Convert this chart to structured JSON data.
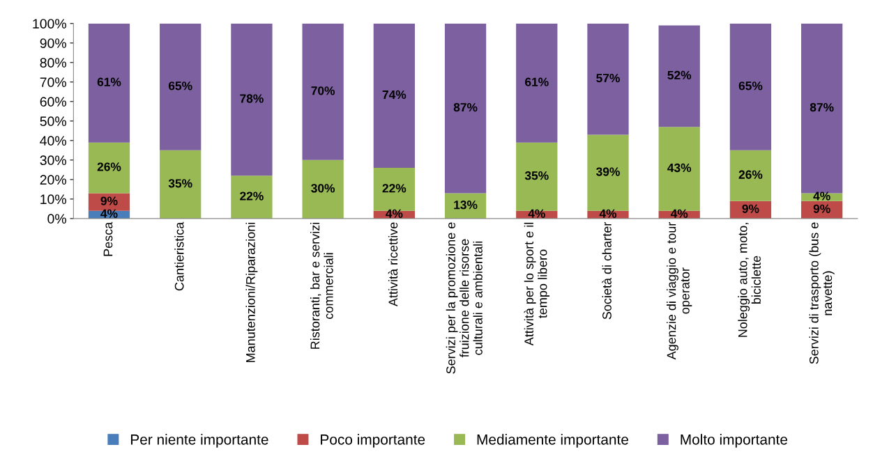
{
  "chart_data": {
    "type": "bar",
    "stacked": true,
    "categories": [
      "Pesca",
      "Cantieristica",
      "Manutenzioni/Riparazioni",
      "Ristoranti, bar e servizi\ncommerciali",
      "Attività ricettive",
      "Servizi per la promozione e\nfruizione delle risorse\nculturali e ambientali",
      "Attività per lo sport e il\ntempo libero",
      "Società di charter",
      "Agenzie di viaggio e tour\noperator",
      "Noleggio auto, moto,\nbiciclette",
      "Servizi di trasporto (bus e\nnavette)"
    ],
    "series": [
      {
        "name": "Per niente importante",
        "color": "#4a7ebb",
        "values": [
          4,
          0,
          0,
          0,
          0,
          0,
          0,
          0,
          0,
          0,
          0
        ],
        "value_labels": [
          "4%",
          null,
          null,
          null,
          null,
          null,
          null,
          null,
          null,
          null,
          null
        ]
      },
      {
        "name": "Poco importante",
        "color": "#be4b48",
        "values": [
          9,
          0,
          0,
          0,
          4,
          0,
          4,
          4,
          4,
          9,
          9
        ],
        "value_labels": [
          "9%",
          null,
          null,
          null,
          "4%",
          null,
          "4%",
          "4%",
          "4%",
          "9%",
          "9%"
        ]
      },
      {
        "name": "Mediamente importante",
        "color": "#98b954",
        "values": [
          26,
          35,
          22,
          30,
          22,
          13,
          35,
          39,
          43,
          26,
          4
        ],
        "value_labels": [
          "26%",
          "35%",
          "22%",
          "30%",
          "22%",
          "13%",
          "35%",
          "39%",
          "43%",
          "26%",
          "4%"
        ]
      },
      {
        "name": "Molto importante",
        "color": "#7d60a0",
        "values": [
          61,
          65,
          78,
          70,
          74,
          87,
          61,
          57,
          52,
          65,
          87
        ],
        "value_labels": [
          "61%",
          "65%",
          "78%",
          "70%",
          "74%",
          "87%",
          "61%",
          "57%",
          "52%",
          "65%",
          "87%"
        ]
      }
    ],
    "ylim": [
      0,
      100
    ],
    "yticks": [
      {
        "value": 0,
        "label": "0%"
      },
      {
        "value": 10,
        "label": "10%"
      },
      {
        "value": 20,
        "label": "20%"
      },
      {
        "value": 30,
        "label": "30%"
      },
      {
        "value": 40,
        "label": "40%"
      },
      {
        "value": 50,
        "label": "50%"
      },
      {
        "value": 60,
        "label": "60%"
      },
      {
        "value": 70,
        "label": "70%"
      },
      {
        "value": 80,
        "label": "80%"
      },
      {
        "value": 90,
        "label": "90%"
      },
      {
        "value": 100,
        "label": "100%"
      }
    ],
    "grid": false,
    "legend": "bottom"
  }
}
